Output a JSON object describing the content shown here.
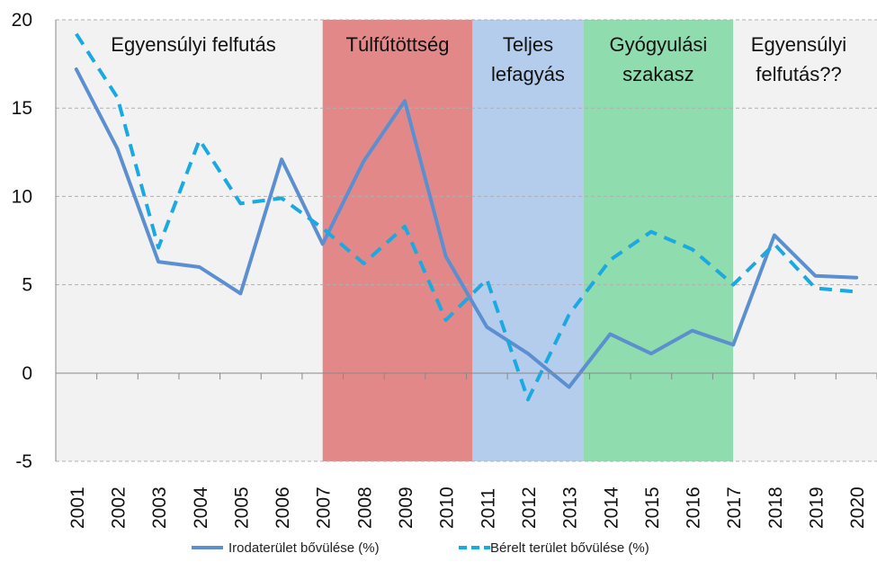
{
  "chart_data": {
    "type": "line",
    "title": "",
    "xlabel": "",
    "ylabel": "",
    "ylim": [
      -5,
      20
    ],
    "yticks": [
      "-5",
      "0",
      "5",
      "10",
      "15",
      "20"
    ],
    "grid": "horizontal dashed",
    "legend_position": "bottom",
    "categories": [
      "2001",
      "2002",
      "2003",
      "2004",
      "2005",
      "2006",
      "2007",
      "2008",
      "2009",
      "2010",
      "2011",
      "2012",
      "2013",
      "2014",
      "2015",
      "2016",
      "2017",
      "2018",
      "2019",
      "2020"
    ],
    "series": [
      {
        "name": "Irodaterület bővülése (%)",
        "style": "solid",
        "color": "#5b8fd0",
        "values": [
          17.2,
          12.7,
          6.3,
          6.0,
          4.5,
          12.1,
          7.3,
          12.0,
          15.4,
          6.6,
          2.6,
          1.1,
          -0.8,
          2.2,
          1.1,
          2.4,
          1.6,
          7.8,
          5.5,
          5.4
        ]
      },
      {
        "name": "Bérelt terület bővülése (%)",
        "style": "dashed",
        "color": "#1aa9e0",
        "values": [
          19.2,
          15.6,
          7.1,
          13.2,
          9.6,
          9.9,
          8.2,
          6.2,
          8.3,
          3.0,
          5.3,
          -1.5,
          3.3,
          6.4,
          8.0,
          7.0,
          5.0,
          7.3,
          4.8,
          4.6
        ]
      }
    ],
    "phases": [
      {
        "label": "Egyensúlyi felfutás",
        "color": "#f2f2f2"
      },
      {
        "label": "Túlfűtöttség",
        "color": "#e38888"
      },
      {
        "label": "Teljes lefagyás",
        "color": "#b5cdec"
      },
      {
        "label": "Gyógyulási szakasz",
        "color": "#8fdcae"
      },
      {
        "label": "Egyensúlyi felfutás??",
        "color": "#f2f2f2"
      }
    ]
  }
}
